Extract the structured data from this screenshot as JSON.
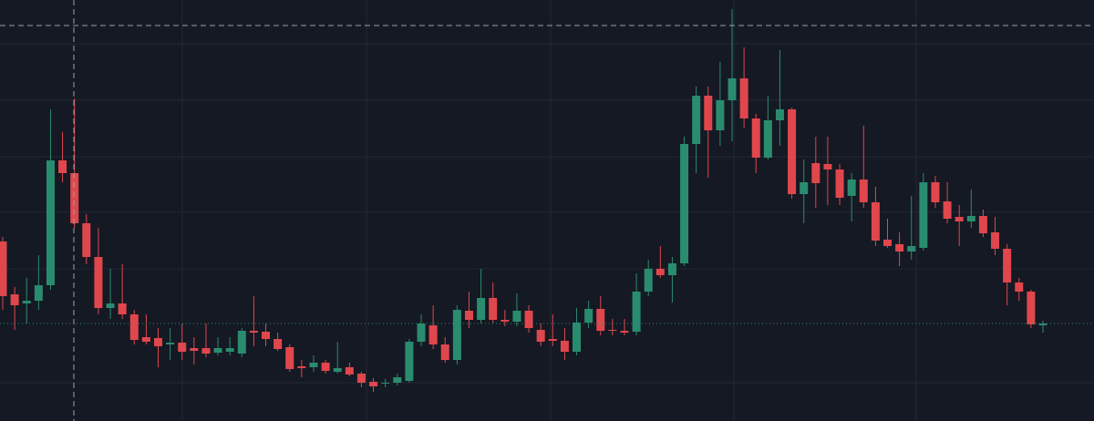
{
  "chart_data": {
    "type": "candlestick",
    "up_color": "#2a8c6e",
    "down_color": "#e0474c",
    "ylim": [
      0,
      462
    ],
    "open": [
      197,
      139,
      129,
      132,
      149,
      286,
      272,
      217,
      180,
      124,
      129,
      117,
      92,
      91,
      84,
      86,
      80,
      80,
      75,
      76,
      74,
      99,
      98,
      90,
      81,
      60,
      59,
      64,
      54,
      59,
      52,
      43,
      41,
      42,
      44,
      87,
      105,
      84,
      67,
      121,
      111,
      135,
      111,
      109,
      121,
      100,
      90,
      88,
      76,
      108,
      123,
      100,
      99,
      98,
      142,
      167,
      160,
      173,
      304,
      357,
      319,
      352,
      376,
      332,
      289,
      330,
      342,
      249,
      283,
      282,
      276,
      247,
      265,
      240,
      199,
      194,
      186,
      190,
      262,
      241,
      224,
      219,
      225,
      207,
      189,
      152,
      142,
      105
    ],
    "high": [
      202,
      147,
      157,
      182,
      342,
      317,
      354,
      227,
      212,
      167,
      172,
      122,
      117,
      102,
      102,
      107,
      92,
      107,
      92,
      92,
      102,
      137,
      107,
      97,
      84,
      67,
      72,
      67,
      87,
      64,
      54,
      47,
      46,
      52,
      90,
      117,
      127,
      92,
      127,
      142,
      167,
      152,
      122,
      140,
      127,
      107,
      117,
      102,
      124,
      132,
      137,
      112,
      112,
      162,
      177,
      192,
      180,
      312,
      367,
      367,
      394,
      452,
      410,
      337,
      357,
      407,
      344,
      287,
      312,
      312,
      282,
      272,
      324,
      257,
      222,
      207,
      247,
      272,
      269,
      262,
      237,
      254,
      232,
      224,
      194,
      157,
      144,
      110
    ],
    "low": [
      122,
      100,
      107,
      122,
      144,
      262,
      212,
      172,
      117,
      112,
      112,
      84,
      84,
      59,
      67,
      67,
      62,
      70,
      72,
      72,
      70,
      82,
      82,
      77,
      54,
      48,
      54,
      52,
      52,
      49,
      37,
      32,
      37,
      39,
      42,
      82,
      79,
      64,
      62,
      102,
      107,
      107,
      104,
      104,
      97,
      82,
      82,
      67,
      72,
      102,
      94,
      94,
      94,
      94,
      137,
      157,
      130,
      170,
      272,
      267,
      302,
      307,
      322,
      272,
      287,
      302,
      244,
      217,
      234,
      237,
      237,
      219,
      234,
      192,
      190,
      170,
      177,
      187,
      234,
      217,
      192,
      212,
      202,
      182,
      127,
      132,
      102,
      97
    ],
    "close": [
      137,
      127,
      132,
      149,
      286,
      272,
      217,
      180,
      124,
      129,
      117,
      89,
      87,
      82,
      86,
      76,
      77,
      74,
      80,
      80,
      99,
      97,
      90,
      79,
      57,
      58,
      64,
      55,
      58,
      51,
      42,
      38,
      42,
      48,
      87,
      107,
      84,
      67,
      122,
      111,
      135,
      111,
      109,
      121,
      102,
      87,
      88,
      76,
      108,
      123,
      99,
      99,
      97,
      142,
      167,
      160,
      173,
      304,
      357,
      319,
      352,
      376,
      332,
      289,
      330,
      342,
      249,
      262,
      261,
      276,
      245,
      265,
      240,
      198,
      192,
      186,
      192,
      262,
      240,
      222,
      219,
      225,
      206,
      189,
      152,
      142,
      106,
      107
    ]
  }
}
